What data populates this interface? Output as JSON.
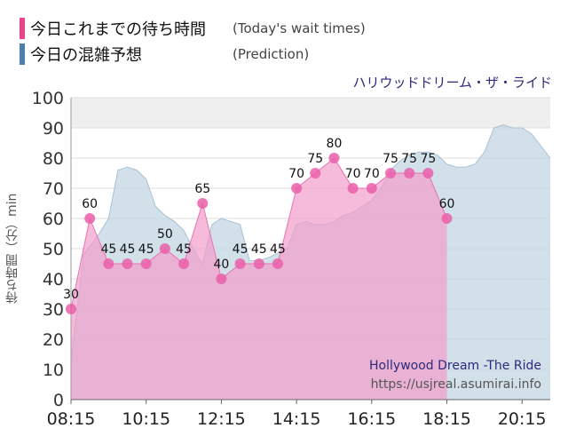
{
  "legend": {
    "items": [
      {
        "label_jp": "今日これまでの待ち時間",
        "label_en": "(Today's wait times)",
        "color": "#e8448a"
      },
      {
        "label_jp": "今日の混雑予想",
        "label_en": "(Prediction)",
        "color": "#4d7fae"
      }
    ]
  },
  "ride_name_jp": "ハリウッドドリーム・ザ・ライド",
  "watermark": {
    "ride_name_en": "Hollywood Dream -The Ride",
    "url": "https://usjreal.asumirai.info"
  },
  "chart_data": {
    "type": "area",
    "ylabel": "待ち時間（分）min",
    "ylim": [
      0,
      100
    ],
    "yticks": [
      "0",
      "10",
      "20",
      "30",
      "40",
      "50",
      "60",
      "70",
      "80",
      "90",
      "100"
    ],
    "x_ticks": [
      "08:15",
      "10:15",
      "12:15",
      "14:15",
      "16:15",
      "18:15",
      "20:15"
    ],
    "xlim": [
      "08:15",
      "21:00"
    ],
    "grid": true,
    "colors": {
      "actual_fill": "#f29ccb",
      "actual_line": "#e872b0",
      "actual_point": "#ea5fa9",
      "prediction_fill": "#c3d6e3",
      "prediction_line": "#a9c1d4",
      "band_fill": "#efefef"
    },
    "series": [
      {
        "name": "今日これまでの待ち時間",
        "x": [
          "08:15",
          "08:45",
          "09:15",
          "09:45",
          "10:15",
          "10:45",
          "11:15",
          "11:45",
          "12:15",
          "12:45",
          "13:15",
          "13:45",
          "14:15",
          "14:45",
          "15:15",
          "15:45",
          "16:15",
          "16:45",
          "17:15",
          "17:45",
          "18:15"
        ],
        "values": [
          30,
          60,
          45,
          45,
          45,
          50,
          45,
          65,
          40,
          45,
          45,
          45,
          70,
          75,
          80,
          70,
          70,
          75,
          75,
          75,
          60
        ]
      },
      {
        "name": "今日の混雑予想",
        "x": [
          "08:15",
          "08:35",
          "09:00",
          "09:15",
          "09:30",
          "09:45",
          "10:00",
          "10:15",
          "10:30",
          "10:45",
          "11:00",
          "11:15",
          "11:30",
          "11:45",
          "12:00",
          "12:15",
          "12:30",
          "12:45",
          "13:00",
          "13:15",
          "13:30",
          "14:00",
          "14:15",
          "14:30",
          "14:45",
          "15:00",
          "15:15",
          "15:30",
          "15:45",
          "16:00",
          "16:15",
          "16:30",
          "16:45",
          "17:00",
          "17:15",
          "17:30",
          "17:45",
          "18:00",
          "18:15",
          "18:30",
          "18:45",
          "19:00",
          "19:15",
          "19:30",
          "19:45",
          "20:00",
          "20:15",
          "20:30",
          "20:45",
          "21:00"
        ],
        "values": [
          13,
          48,
          55,
          60,
          76,
          77,
          76,
          73,
          64,
          61,
          59,
          56,
          50,
          45,
          58,
          60,
          59,
          58,
          46,
          46,
          47,
          50,
          58,
          59,
          58,
          58,
          59,
          61,
          62,
          64,
          66,
          70,
          76,
          79,
          81,
          82,
          82,
          81,
          78,
          77,
          77,
          78,
          82,
          90,
          91,
          90,
          90,
          88,
          84,
          80
        ]
      }
    ]
  }
}
